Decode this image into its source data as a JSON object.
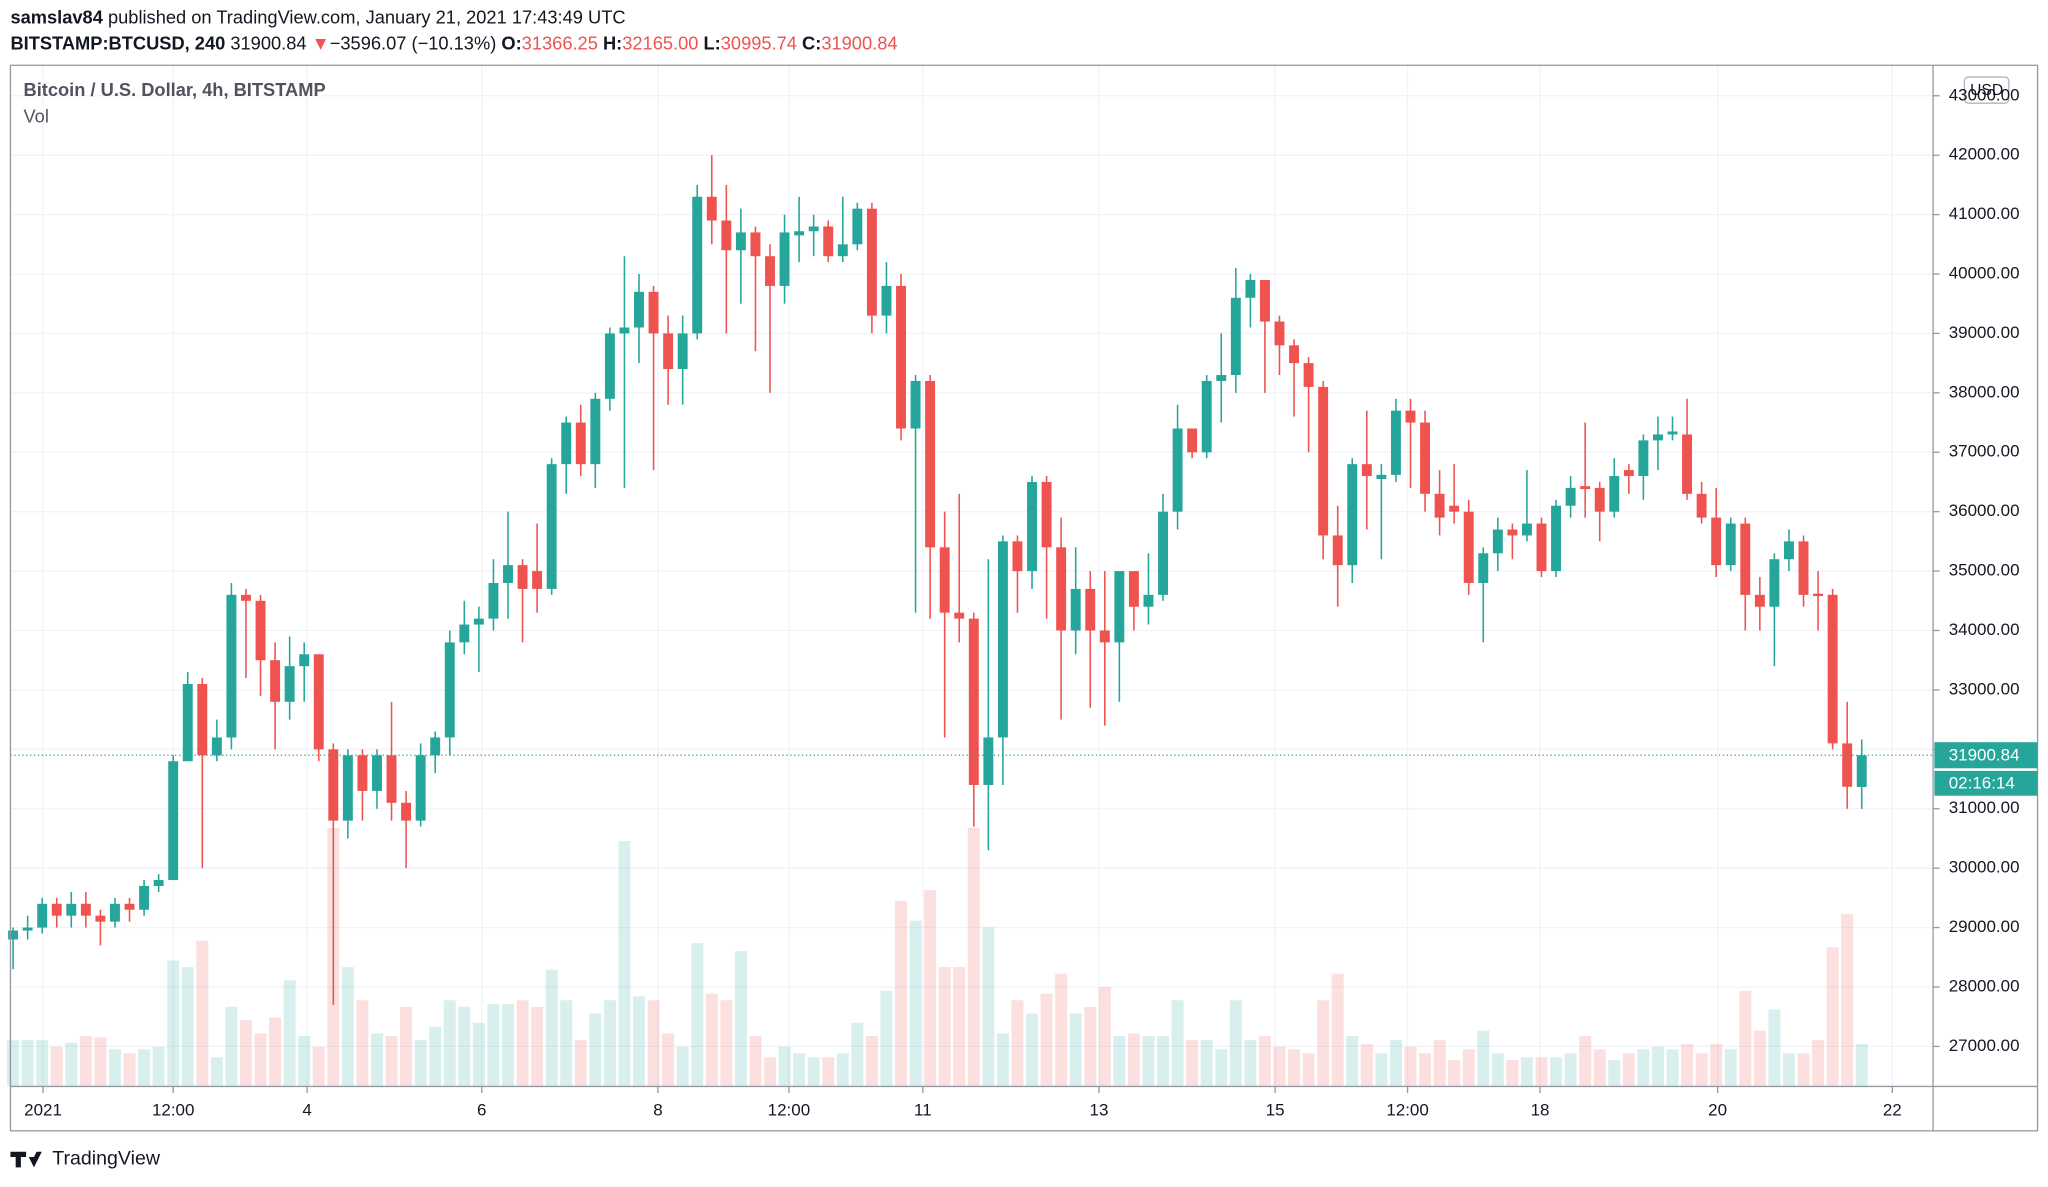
{
  "header": {
    "author": "samslav84",
    "published": "published on TradingView.com, January 21, 2021 17:43:49 UTC",
    "symbol": "BITSTAMP:BTCUSD, 240",
    "last": "31900.84",
    "arrow": "▼",
    "change": "−3596.07 (−10.13%)",
    "o_label": "O:",
    "open": "31366.25",
    "h_label": "H:",
    "high": "32165.00",
    "l_label": "L:",
    "low": "30995.74",
    "c_label": "C:",
    "close": "31900.84"
  },
  "chart_data": {
    "type": "candlestick",
    "title": "Bitcoin / U.S. Dollar, 4h, BITSTAMP",
    "volume_title": "Vol",
    "currency": "USD",
    "countdown": "02:16:14",
    "up_color": "#26a69a",
    "down_color": "#ef5350",
    "grid": true,
    "candles": [
      [
        28800,
        29000,
        28300,
        28950
      ],
      [
        28950,
        29200,
        28800,
        29000
      ],
      [
        29000,
        29500,
        28900,
        29400
      ],
      [
        29400,
        29500,
        29000,
        29200
      ],
      [
        29200,
        29600,
        29000,
        29400
      ],
      [
        29400,
        29600,
        29000,
        29200
      ],
      [
        29200,
        29300,
        28700,
        29100
      ],
      [
        29100,
        29500,
        29000,
        29400
      ],
      [
        29400,
        29500,
        29100,
        29300
      ],
      [
        29300,
        29800,
        29200,
        29700
      ],
      [
        29700,
        29900,
        29600,
        29800
      ],
      [
        29800,
        31900,
        29800,
        31800
      ],
      [
        31800,
        33300,
        31800,
        33100
      ],
      [
        33100,
        33200,
        30000,
        31900
      ],
      [
        31900,
        32500,
        31800,
        32200
      ],
      [
        32200,
        34800,
        32000,
        34600
      ],
      [
        34600,
        34700,
        33200,
        34500
      ],
      [
        34500,
        34600,
        32900,
        33500
      ],
      [
        33500,
        33800,
        32000,
        32800
      ],
      [
        32800,
        33900,
        32500,
        33400
      ],
      [
        33400,
        33800,
        32800,
        33600
      ],
      [
        33600,
        33600,
        31800,
        32000
      ],
      [
        32000,
        32100,
        27700,
        30800
      ],
      [
        30800,
        32000,
        30500,
        31900
      ],
      [
        31900,
        32000,
        30800,
        31300
      ],
      [
        31300,
        32000,
        31000,
        31900
      ],
      [
        31900,
        32800,
        30800,
        31100
      ],
      [
        31100,
        31300,
        30000,
        30800
      ],
      [
        30800,
        32100,
        30700,
        31900
      ],
      [
        31900,
        32300,
        31600,
        32200
      ],
      [
        32200,
        34000,
        31900,
        33800
      ],
      [
        33800,
        34500,
        33600,
        34100
      ],
      [
        34100,
        34400,
        33300,
        34200
      ],
      [
        34200,
        35200,
        34000,
        34800
      ],
      [
        34800,
        36000,
        34200,
        35100
      ],
      [
        35100,
        35200,
        33800,
        34700
      ],
      [
        35000,
        35800,
        34300,
        34700
      ],
      [
        34700,
        36900,
        34600,
        36800
      ],
      [
        36800,
        37600,
        36300,
        37500
      ],
      [
        37500,
        37800,
        36600,
        36800
      ],
      [
        36800,
        38000,
        36400,
        37900
      ],
      [
        37900,
        39100,
        37700,
        39000
      ],
      [
        39000,
        40300,
        36400,
        39100
      ],
      [
        39100,
        40000,
        38500,
        39700
      ],
      [
        39700,
        39800,
        36700,
        39000
      ],
      [
        39000,
        39300,
        37800,
        38400
      ],
      [
        38400,
        39300,
        37800,
        39000
      ],
      [
        39000,
        41500,
        38900,
        41300
      ],
      [
        41300,
        42000,
        40500,
        40900
      ],
      [
        40900,
        41500,
        39000,
        40400
      ],
      [
        40400,
        41100,
        39500,
        40700
      ],
      [
        40700,
        40800,
        38700,
        40300
      ],
      [
        40300,
        40500,
        38000,
        39800
      ],
      [
        39800,
        41000,
        39500,
        40700
      ],
      [
        40650,
        41300,
        40200,
        40720
      ],
      [
        40720,
        41000,
        40300,
        40800
      ],
      [
        40800,
        40900,
        40200,
        40300
      ],
      [
        40300,
        41300,
        40200,
        40500
      ],
      [
        40500,
        41200,
        40400,
        41100
      ],
      [
        41100,
        41200,
        39000,
        39300
      ],
      [
        39300,
        40200,
        39000,
        39800
      ],
      [
        39800,
        40000,
        37200,
        37400
      ],
      [
        37400,
        38300,
        34300,
        38200
      ],
      [
        38200,
        38300,
        34200,
        35400
      ],
      [
        35400,
        36000,
        32200,
        34300
      ],
      [
        34300,
        36300,
        33800,
        34200
      ],
      [
        34200,
        34300,
        30700,
        31400
      ],
      [
        31400,
        35200,
        30300,
        32200
      ],
      [
        32200,
        35600,
        31400,
        35500
      ],
      [
        35500,
        35600,
        34300,
        35000
      ],
      [
        35000,
        36600,
        34700,
        36500
      ],
      [
        36500,
        36600,
        34200,
        35400
      ],
      [
        35400,
        35900,
        32500,
        34000
      ],
      [
        34000,
        35400,
        33600,
        34700
      ],
      [
        34700,
        35000,
        32700,
        34000
      ],
      [
        34000,
        35000,
        32400,
        33800
      ],
      [
        33800,
        35000,
        32800,
        35000
      ],
      [
        35000,
        35000,
        34000,
        34400
      ],
      [
        34400,
        35300,
        34100,
        34600
      ],
      [
        34600,
        36300,
        34500,
        36000
      ],
      [
        36000,
        37800,
        35700,
        37400
      ],
      [
        37400,
        37400,
        36900,
        37000
      ],
      [
        37000,
        38300,
        36900,
        38200
      ],
      [
        38200,
        39000,
        37500,
        38300
      ],
      [
        38300,
        40100,
        38000,
        39600
      ],
      [
        39600,
        40000,
        39100,
        39900
      ],
      [
        39900,
        39900,
        38000,
        39200
      ],
      [
        39200,
        39300,
        38300,
        38800
      ],
      [
        38800,
        38900,
        37600,
        38500
      ],
      [
        38500,
        38600,
        37000,
        38100
      ],
      [
        38100,
        38200,
        35200,
        35600
      ],
      [
        35600,
        36100,
        34400,
        35100
      ],
      [
        35100,
        36900,
        34800,
        36800
      ],
      [
        36800,
        37700,
        35700,
        36600
      ],
      [
        36550,
        36800,
        35200,
        36620
      ],
      [
        36620,
        37900,
        36500,
        37700
      ],
      [
        37700,
        37900,
        36400,
        37500
      ],
      [
        37500,
        37700,
        36000,
        36300
      ],
      [
        36300,
        36700,
        35600,
        35900
      ],
      [
        36100,
        36800,
        35800,
        36000
      ],
      [
        36000,
        36200,
        34600,
        34800
      ],
      [
        34800,
        35400,
        33800,
        35300
      ],
      [
        35300,
        35900,
        35000,
        35700
      ],
      [
        35700,
        35800,
        35200,
        35600
      ],
      [
        35600,
        36700,
        35500,
        35800
      ],
      [
        35800,
        35900,
        34900,
        35000
      ],
      [
        35000,
        36200,
        34900,
        36100
      ],
      [
        36100,
        36600,
        35900,
        36400
      ],
      [
        36430,
        37500,
        35900,
        36380
      ],
      [
        36400,
        36500,
        35500,
        36000
      ],
      [
        36000,
        36900,
        35900,
        36600
      ],
      [
        36700,
        36800,
        36300,
        36600
      ],
      [
        36600,
        37300,
        36200,
        37200
      ],
      [
        37200,
        37600,
        36700,
        37300
      ],
      [
        37300,
        37600,
        37200,
        37350
      ],
      [
        37300,
        37900,
        36200,
        36300
      ],
      [
        36300,
        36500,
        35800,
        35900
      ],
      [
        35900,
        36400,
        34900,
        35100
      ],
      [
        35100,
        35900,
        35000,
        35800
      ],
      [
        35800,
        35900,
        34000,
        34600
      ],
      [
        34600,
        34900,
        34000,
        34400
      ],
      [
        34400,
        35300,
        33400,
        35200
      ],
      [
        35200,
        35700,
        35000,
        35500
      ],
      [
        35500,
        35600,
        34400,
        34600
      ],
      [
        34620,
        35000,
        34000,
        34580
      ],
      [
        34600,
        34700,
        32000,
        32100
      ],
      [
        32100,
        32800,
        31000,
        31370
      ],
      [
        31366.25,
        32165,
        30995.74,
        31900.84
      ]
    ],
    "volumes": [
      35,
      35,
      35,
      30,
      33,
      38,
      37,
      28,
      25,
      28,
      30,
      95,
      90,
      110,
      22,
      60,
      50,
      40,
      52,
      80,
      38,
      30,
      195,
      90,
      65,
      40,
      38,
      60,
      35,
      45,
      65,
      60,
      48,
      62,
      62,
      65,
      60,
      88,
      65,
      35,
      55,
      65,
      185,
      68,
      65,
      40,
      30,
      108,
      70,
      65,
      102,
      38,
      22,
      30,
      25,
      22,
      22,
      25,
      48,
      38,
      72,
      140,
      125,
      148,
      90,
      90,
      195,
      120,
      40,
      65,
      55,
      70,
      85,
      55,
      60,
      75,
      38,
      40,
      38,
      38,
      65,
      35,
      35,
      28,
      65,
      35,
      38,
      30,
      28,
      25,
      65,
      85,
      38,
      32,
      25,
      35,
      30,
      25,
      35,
      20,
      28,
      42,
      25,
      20,
      22,
      22,
      22,
      25,
      38,
      28,
      20,
      25,
      28,
      30,
      28,
      32,
      25,
      32,
      28,
      72,
      42,
      58,
      25,
      25,
      35,
      105,
      130,
      32
    ],
    "vlim": [
      0,
      770
    ],
    "ylim": [
      26326,
      43513
    ],
    "yticks": [
      {
        "value": 27000,
        "label": "27000.00"
      },
      {
        "value": 28000,
        "label": "28000.00"
      },
      {
        "value": 29000,
        "label": "29000.00"
      },
      {
        "value": 30000,
        "label": "30000.00"
      },
      {
        "value": 31000,
        "label": "31000.00"
      },
      {
        "value": 32000,
        "label": "32000.00"
      },
      {
        "value": 33000,
        "label": "33000.00"
      },
      {
        "value": 34000,
        "label": "34000.00"
      },
      {
        "value": 35000,
        "label": "35000.00"
      },
      {
        "value": 36000,
        "label": "36000.00"
      },
      {
        "value": 37000,
        "label": "37000.00"
      },
      {
        "value": 38000,
        "label": "38000.00"
      },
      {
        "value": 39000,
        "label": "39000.00"
      },
      {
        "value": 40000,
        "label": "40000.00"
      },
      {
        "value": 41000,
        "label": "41000.00"
      },
      {
        "value": 42000,
        "label": "42000.00"
      },
      {
        "value": 43000,
        "label": "43000.00"
      }
    ],
    "xlim": [
      -0.18,
      131.9
    ],
    "xticks": [
      {
        "value": 2.06,
        "label": "2021"
      },
      {
        "value": 11.0,
        "label": "12:00"
      },
      {
        "value": 20.2,
        "label": "4"
      },
      {
        "value": 32.2,
        "label": "6"
      },
      {
        "value": 44.3,
        "label": "8"
      },
      {
        "value": 53.3,
        "label": "12:00"
      },
      {
        "value": 62.5,
        "label": "11"
      },
      {
        "value": 74.6,
        "label": "13"
      },
      {
        "value": 86.7,
        "label": "15"
      },
      {
        "value": 95.8,
        "label": "12:00"
      },
      {
        "value": 104.9,
        "label": "18"
      },
      {
        "value": 117.1,
        "label": "20"
      },
      {
        "value": 129.1,
        "label": "22"
      }
    ]
  },
  "footer": {
    "brand": "TradingView"
  }
}
